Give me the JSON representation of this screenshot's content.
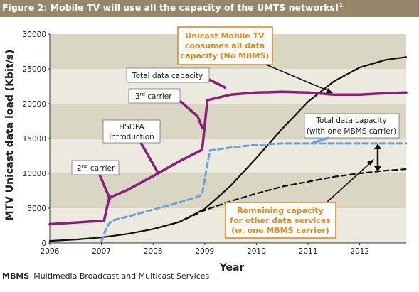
{
  "figure": {
    "title": "Figure 2: Mobile TV will use all the capacity of the UMTS networks!",
    "title_sup": "1",
    "footnote_abbr": "MBMS",
    "footnote_text": "Multimedia Broadcast and Multicast Services"
  },
  "colors": {
    "title_bg": "#96876a",
    "band_dark": "#d9d6c4",
    "band_light": "#eceadf",
    "total": "#8b1e7a",
    "mbms": "#6fa0d8",
    "unicast": "#111111",
    "remaining": "#111111",
    "callout": "#e8881f"
  },
  "annotations": {
    "total_capacity": "Total data capacity",
    "third_carrier": "3",
    "third_carrier_sup": "rd",
    "third_carrier_rest": " carrier",
    "hsdpa_1": "HSDPA",
    "hsdpa_2": "Introduction",
    "second_carrier": "2",
    "second_carrier_sup": "nd",
    "second_carrier_rest": " carrier",
    "mbms_total_1": "Total data capacity",
    "mbms_total_2": "(with one MBMS carrier)",
    "unicast_1": "Unicast Mobile TV",
    "unicast_2": "consumes all data",
    "unicast_3": "capacity (No MBMS)",
    "remaining_1": "Remaining capacity",
    "remaining_2": "for other data services",
    "remaining_3": "(w. one MBMS carrier)"
  },
  "chart_data": {
    "type": "line",
    "title": "Figure 2: Mobile TV will use all the capacity of the UMTS networks!",
    "xlabel": "Year",
    "ylabel": "MTV Unicast data load (Kbit/s)",
    "xlim": [
      2006,
      2012.9
    ],
    "ylim": [
      0,
      30000
    ],
    "x_ticks": [
      "2006",
      "2007",
      "2008",
      "2009",
      "2010",
      "2011",
      "2012"
    ],
    "y_ticks": [
      "0",
      "5000",
      "10000",
      "15000",
      "20000",
      "25000",
      "30000"
    ],
    "grid": "horizontal bands",
    "series": [
      {
        "key": "total",
        "name": "Total data capacity",
        "style": "solid",
        "points": [
          [
            2006,
            2700
          ],
          [
            2007.05,
            3200
          ],
          [
            2007.15,
            6500
          ],
          [
            2007.5,
            7600
          ],
          [
            2008.0,
            9600
          ],
          [
            2008.5,
            11700
          ],
          [
            2008.9,
            13200
          ],
          [
            2008.95,
            13400
          ],
          [
            2009.05,
            20500
          ],
          [
            2009.5,
            21300
          ],
          [
            2010.0,
            21600
          ],
          [
            2010.5,
            21700
          ],
          [
            2011.0,
            21600
          ],
          [
            2011.5,
            21300
          ],
          [
            2012.0,
            21300
          ],
          [
            2012.5,
            21500
          ],
          [
            2012.9,
            21600
          ]
        ]
      },
      {
        "key": "mbms",
        "name": "Total data capacity (with one MBMS carrier)",
        "style": "dashed",
        "points": [
          [
            2007.0,
            200
          ],
          [
            2007.1,
            2300
          ],
          [
            2007.2,
            3200
          ],
          [
            2007.5,
            3800
          ],
          [
            2008.0,
            4800
          ],
          [
            2008.5,
            5800
          ],
          [
            2008.85,
            6600
          ],
          [
            2008.95,
            7000
          ],
          [
            2009.1,
            13300
          ],
          [
            2009.5,
            13700
          ],
          [
            2010.0,
            14100
          ],
          [
            2010.5,
            14300
          ],
          [
            2011.0,
            14300
          ],
          [
            2011.5,
            14300
          ],
          [
            2012.0,
            14300
          ],
          [
            2012.5,
            14300
          ],
          [
            2012.9,
            14300
          ]
        ]
      },
      {
        "key": "unicast",
        "name": "Unicast Mobile TV consumes all data capacity (No MBMS)",
        "style": "solid",
        "points": [
          [
            2006,
            300
          ],
          [
            2006.5,
            500
          ],
          [
            2007.0,
            800
          ],
          [
            2007.5,
            1300
          ],
          [
            2008.0,
            2000
          ],
          [
            2008.5,
            3000
          ],
          [
            2009.0,
            4900
          ],
          [
            2009.5,
            8200
          ],
          [
            2010.0,
            12200
          ],
          [
            2010.5,
            16400
          ],
          [
            2011.0,
            20300
          ],
          [
            2011.5,
            23200
          ],
          [
            2012.0,
            25200
          ],
          [
            2012.5,
            26300
          ],
          [
            2012.9,
            26700
          ]
        ]
      },
      {
        "key": "remaining",
        "name": "Remaining capacity for other data services (w. one MBMS carrier)",
        "style": "dashed",
        "points": [
          [
            2008.0,
            2000
          ],
          [
            2008.5,
            3000
          ],
          [
            2009.0,
            4700
          ],
          [
            2009.5,
            6000
          ],
          [
            2010.0,
            7100
          ],
          [
            2010.5,
            8100
          ],
          [
            2011.0,
            8800
          ],
          [
            2011.5,
            9500
          ],
          [
            2012.0,
            10000
          ],
          [
            2012.5,
            10400
          ],
          [
            2012.9,
            10600
          ]
        ]
      }
    ]
  }
}
